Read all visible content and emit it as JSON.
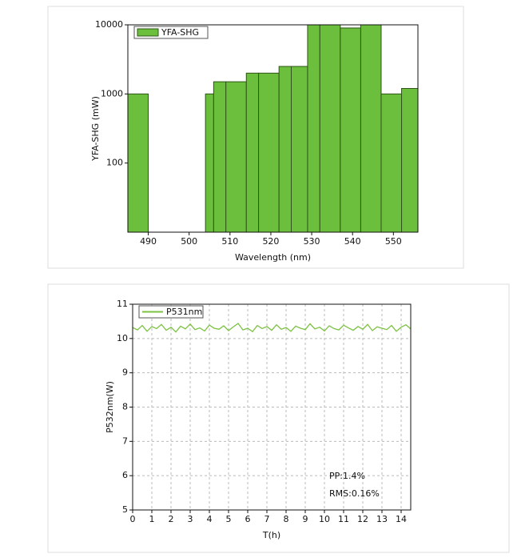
{
  "chart_data": [
    {
      "type": "histogram",
      "x_label": "Wavelength (nm)",
      "y_label": "YFA-SHG (mW)",
      "bins": [
        485,
        490,
        504,
        506,
        509,
        514,
        517,
        522,
        525,
        529,
        532,
        537,
        542,
        547,
        552,
        556
      ],
      "series": [
        {
          "name": "YFA-SHG",
          "color": "#6cbf3c",
          "values": [
            1000,
            null,
            1000,
            1500,
            1500,
            2000,
            2000,
            2500,
            2500,
            10000,
            10000,
            9000,
            10000,
            1000,
            1200
          ]
        }
      ],
      "xlim": [
        485,
        556
      ],
      "xticks": [
        490,
        500,
        510,
        520,
        530,
        540,
        550
      ],
      "ylim": [
        10,
        10000
      ],
      "yticks": [
        100,
        1000,
        10000
      ],
      "log_y": true,
      "grid": false,
      "legend": "upper left"
    },
    {
      "type": "line",
      "x_label": "T(h)",
      "y_label": "P532nm(W)",
      "x": [
        0,
        0.25,
        0.5,
        0.75,
        1,
        1.25,
        1.5,
        1.75,
        2,
        2.25,
        2.5,
        2.75,
        3,
        3.25,
        3.5,
        3.75,
        4,
        4.25,
        4.5,
        4.75,
        5,
        5.25,
        5.5,
        5.75,
        6,
        6.25,
        6.5,
        6.75,
        7,
        7.25,
        7.5,
        7.75,
        8,
        8.25,
        8.5,
        8.75,
        9,
        9.25,
        9.5,
        9.75,
        10,
        10.25,
        10.5,
        10.75,
        11,
        11.25,
        11.5,
        11.75,
        12,
        12.25,
        12.5,
        12.75,
        13,
        13.25,
        13.5,
        13.75,
        14,
        14.25,
        14.5
      ],
      "series": [
        {
          "name": "P531nm",
          "color": "#7cc242",
          "values": [
            10.32,
            10.25,
            10.38,
            10.21,
            10.35,
            10.29,
            10.41,
            10.24,
            10.33,
            10.19,
            10.36,
            10.28,
            10.42,
            10.26,
            10.31,
            10.22,
            10.39,
            10.3,
            10.27,
            10.37,
            10.23,
            10.34,
            10.44,
            10.25,
            10.3,
            10.2,
            10.38,
            10.29,
            10.35,
            10.24,
            10.4,
            10.27,
            10.32,
            10.21,
            10.36,
            10.3,
            10.26,
            10.43,
            10.28,
            10.33,
            10.22,
            10.37,
            10.29,
            10.25,
            10.39,
            10.31,
            10.24,
            10.35,
            10.27,
            10.41,
            10.23,
            10.34,
            10.3,
            10.26,
            10.38,
            10.21,
            10.33,
            10.4,
            10.28
          ]
        }
      ],
      "xlim": [
        0,
        14.5
      ],
      "xticks": [
        0,
        1,
        2,
        3,
        4,
        5,
        6,
        7,
        8,
        9,
        10,
        11,
        12,
        13,
        14
      ],
      "ylim": [
        5,
        11
      ],
      "yticks": [
        5,
        6,
        7,
        8,
        9,
        10,
        11
      ],
      "log_y": false,
      "grid": true,
      "legend": "upper left",
      "annotations": [
        "PP:1.4%",
        "RMS:0.16%"
      ]
    }
  ]
}
